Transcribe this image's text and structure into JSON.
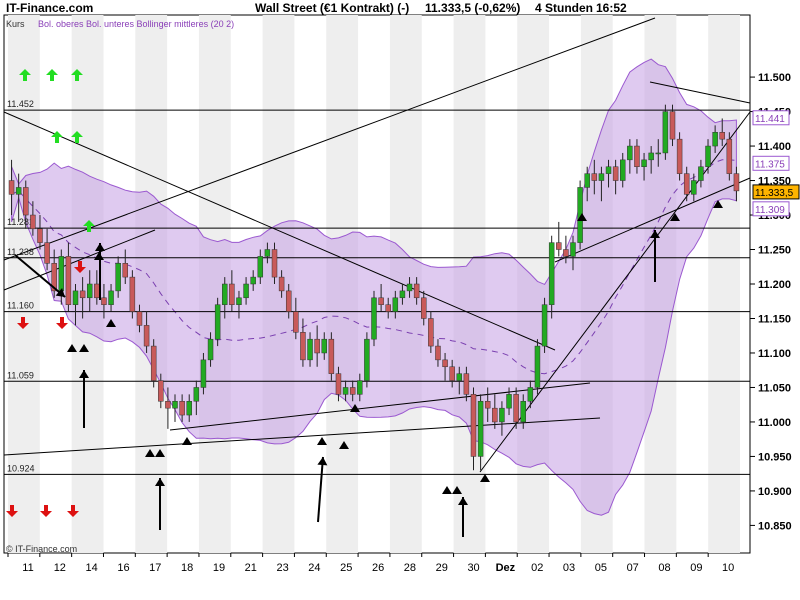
{
  "header": {
    "brand": "IT-Finance.com",
    "title": "Wall Street (€1 Kontrakt) (-)",
    "price": "11.333,5 (-0,62%)",
    "timeframe": "4 Stunden",
    "time": "16:52"
  },
  "legend": {
    "kurs": "Kurs",
    "bands": "Bol. oberes Bol. unteres Bollinger mittleres (20 2)"
  },
  "footer": {
    "copyright": "© IT-Finance.com"
  },
  "colors": {
    "up": "#22aa22",
    "down": "#c85a5a",
    "band_fill": "#caa6e6",
    "band_edge": "#9b59d0",
    "mid_band": "#7a3fb0",
    "arrow_up_green": "#22dd22",
    "arrow_down_red": "#dd1111",
    "current_price_box": "#ffb400"
  },
  "chart_data": {
    "type": "candlestick",
    "ylim": [
      10.81,
      11.59
    ],
    "y_ticks": [
      "11.500",
      "11.450",
      "11.400",
      "11.350",
      "11.300",
      "11.250",
      "11.200",
      "11.150",
      "11.100",
      "11.050",
      "11.000",
      "10.950",
      "10.900",
      "10.850"
    ],
    "y_tick_values": [
      11500,
      11450,
      11400,
      11350,
      11300,
      11250,
      11200,
      11150,
      11100,
      11050,
      11000,
      10950,
      10900,
      10850
    ],
    "x_labels": [
      "11",
      "12",
      "14",
      "16",
      "17",
      "18",
      "19",
      "21",
      "23",
      "24",
      "25",
      "26",
      "28",
      "29",
      "30",
      "Dez",
      "02",
      "03",
      "05",
      "07",
      "08",
      "09",
      "10"
    ],
    "support_levels": [
      {
        "value": 11452,
        "label": "11.452"
      },
      {
        "value": 11281,
        "label": "11.281"
      },
      {
        "value": 11238,
        "label": "11.238"
      },
      {
        "value": 11160,
        "label": "11.160"
      },
      {
        "value": 11059,
        "label": "11.059"
      },
      {
        "value": 10924,
        "label": "10.924"
      }
    ],
    "right_boxes": [
      {
        "value": 11441,
        "label": "11.441"
      },
      {
        "value": 11375,
        "label": "11.375"
      },
      {
        "value": 11333.5,
        "label": "11.333,5",
        "current": true
      },
      {
        "value": 11309,
        "label": "11.309"
      }
    ],
    "candles": [
      [
        11350,
        11380,
        11300,
        11330
      ],
      [
        11330,
        11360,
        11290,
        11340
      ],
      [
        11340,
        11350,
        11280,
        11300
      ],
      [
        11300,
        11320,
        11270,
        11280
      ],
      [
        11280,
        11300,
        11250,
        11260
      ],
      [
        11260,
        11280,
        11220,
        11230
      ],
      [
        11230,
        11250,
        11180,
        11190
      ],
      [
        11190,
        11250,
        11170,
        11240
      ],
      [
        11240,
        11260,
        11160,
        11170
      ],
      [
        11170,
        11200,
        11140,
        11190
      ],
      [
        11190,
        11210,
        11150,
        11180
      ],
      [
        11180,
        11220,
        11160,
        11200
      ],
      [
        11200,
        11220,
        11170,
        11180
      ],
      [
        11180,
        11200,
        11150,
        11170
      ],
      [
        11170,
        11200,
        11160,
        11190
      ],
      [
        11190,
        11240,
        11180,
        11230
      ],
      [
        11230,
        11250,
        11200,
        11210
      ],
      [
        11210,
        11220,
        11150,
        11160
      ],
      [
        11160,
        11170,
        11130,
        11140
      ],
      [
        11140,
        11160,
        11100,
        11110
      ],
      [
        11110,
        11120,
        11050,
        11060
      ],
      [
        11060,
        11070,
        11020,
        11030
      ],
      [
        11030,
        11050,
        10990,
        11020
      ],
      [
        11020,
        11040,
        11000,
        11030
      ],
      [
        11030,
        11040,
        11000,
        11010
      ],
      [
        11010,
        11040,
        11000,
        11030
      ],
      [
        11030,
        11060,
        11010,
        11050
      ],
      [
        11050,
        11100,
        11040,
        11090
      ],
      [
        11090,
        11130,
        11080,
        11120
      ],
      [
        11120,
        11180,
        11110,
        11170
      ],
      [
        11170,
        11210,
        11150,
        11200
      ],
      [
        11200,
        11220,
        11160,
        11170
      ],
      [
        11170,
        11190,
        11150,
        11180
      ],
      [
        11180,
        11210,
        11170,
        11200
      ],
      [
        11200,
        11220,
        11190,
        11210
      ],
      [
        11210,
        11250,
        11200,
        11240
      ],
      [
        11240,
        11260,
        11230,
        11250
      ],
      [
        11250,
        11260,
        11200,
        11210
      ],
      [
        11210,
        11220,
        11180,
        11190
      ],
      [
        11190,
        11200,
        11150,
        11160
      ],
      [
        11160,
        11180,
        11120,
        11130
      ],
      [
        11130,
        11150,
        11080,
        11090
      ],
      [
        11090,
        11130,
        11080,
        11120
      ],
      [
        11120,
        11140,
        11080,
        11100
      ],
      [
        11100,
        11130,
        11090,
        11120
      ],
      [
        11120,
        11130,
        11060,
        11070
      ],
      [
        11070,
        11080,
        11030,
        11040
      ],
      [
        11040,
        11060,
        11030,
        11050
      ],
      [
        11050,
        11060,
        11030,
        11040
      ],
      [
        11040,
        11070,
        11030,
        11060
      ],
      [
        11060,
        11130,
        11050,
        11120
      ],
      [
        11120,
        11190,
        11110,
        11180
      ],
      [
        11180,
        11200,
        11160,
        11170
      ],
      [
        11170,
        11180,
        11150,
        11160
      ],
      [
        11160,
        11190,
        11150,
        11180
      ],
      [
        11180,
        11200,
        11170,
        11190
      ],
      [
        11190,
        11210,
        11180,
        11200
      ],
      [
        11200,
        11210,
        11170,
        11180
      ],
      [
        11180,
        11190,
        11140,
        11150
      ],
      [
        11150,
        11160,
        11100,
        11110
      ],
      [
        11110,
        11120,
        11080,
        11090
      ],
      [
        11090,
        11100,
        11060,
        11080
      ],
      [
        11080,
        11090,
        11050,
        11060
      ],
      [
        11060,
        11080,
        11040,
        11070
      ],
      [
        11070,
        11080,
        11030,
        11040
      ],
      [
        11040,
        11050,
        10930,
        10950
      ],
      [
        10950,
        11040,
        10930,
        11030
      ],
      [
        11030,
        11050,
        11000,
        11020
      ],
      [
        11020,
        11040,
        10990,
        11000
      ],
      [
        11000,
        11030,
        10980,
        11020
      ],
      [
        11020,
        11050,
        11010,
        11040
      ],
      [
        11040,
        11050,
        10990,
        11000
      ],
      [
        11000,
        11040,
        10990,
        11030
      ],
      [
        11030,
        11060,
        11020,
        11050
      ],
      [
        11050,
        11120,
        11040,
        11110
      ],
      [
        11110,
        11180,
        11100,
        11170
      ],
      [
        11170,
        11270,
        11150,
        11260
      ],
      [
        11260,
        11290,
        11240,
        11250
      ],
      [
        11250,
        11270,
        11230,
        11240
      ],
      [
        11240,
        11270,
        11220,
        11260
      ],
      [
        11260,
        11350,
        11250,
        11340
      ],
      [
        11340,
        11370,
        11320,
        11360
      ],
      [
        11360,
        11380,
        11330,
        11350
      ],
      [
        11350,
        11370,
        11320,
        11360
      ],
      [
        11360,
        11380,
        11340,
        11370
      ],
      [
        11370,
        11380,
        11330,
        11350
      ],
      [
        11350,
        11390,
        11340,
        11380
      ],
      [
        11380,
        11410,
        11360,
        11400
      ],
      [
        11400,
        11410,
        11360,
        11370
      ],
      [
        11370,
        11390,
        11350,
        11380
      ],
      [
        11380,
        11400,
        11360,
        11390
      ],
      [
        11390,
        11410,
        11370,
        11390
      ],
      [
        11390,
        11460,
        11380,
        11450
      ],
      [
        11450,
        11460,
        11400,
        11410
      ],
      [
        11410,
        11420,
        11350,
        11360
      ],
      [
        11360,
        11370,
        11320,
        11330
      ],
      [
        11330,
        11360,
        11320,
        11350
      ],
      [
        11350,
        11380,
        11340,
        11370
      ],
      [
        11370,
        11410,
        11360,
        11400
      ],
      [
        11400,
        11430,
        11390,
        11420
      ],
      [
        11420,
        11440,
        11400,
        11410
      ],
      [
        11410,
        11420,
        11350,
        11360
      ],
      [
        11360,
        11370,
        11320,
        11335
      ]
    ]
  }
}
